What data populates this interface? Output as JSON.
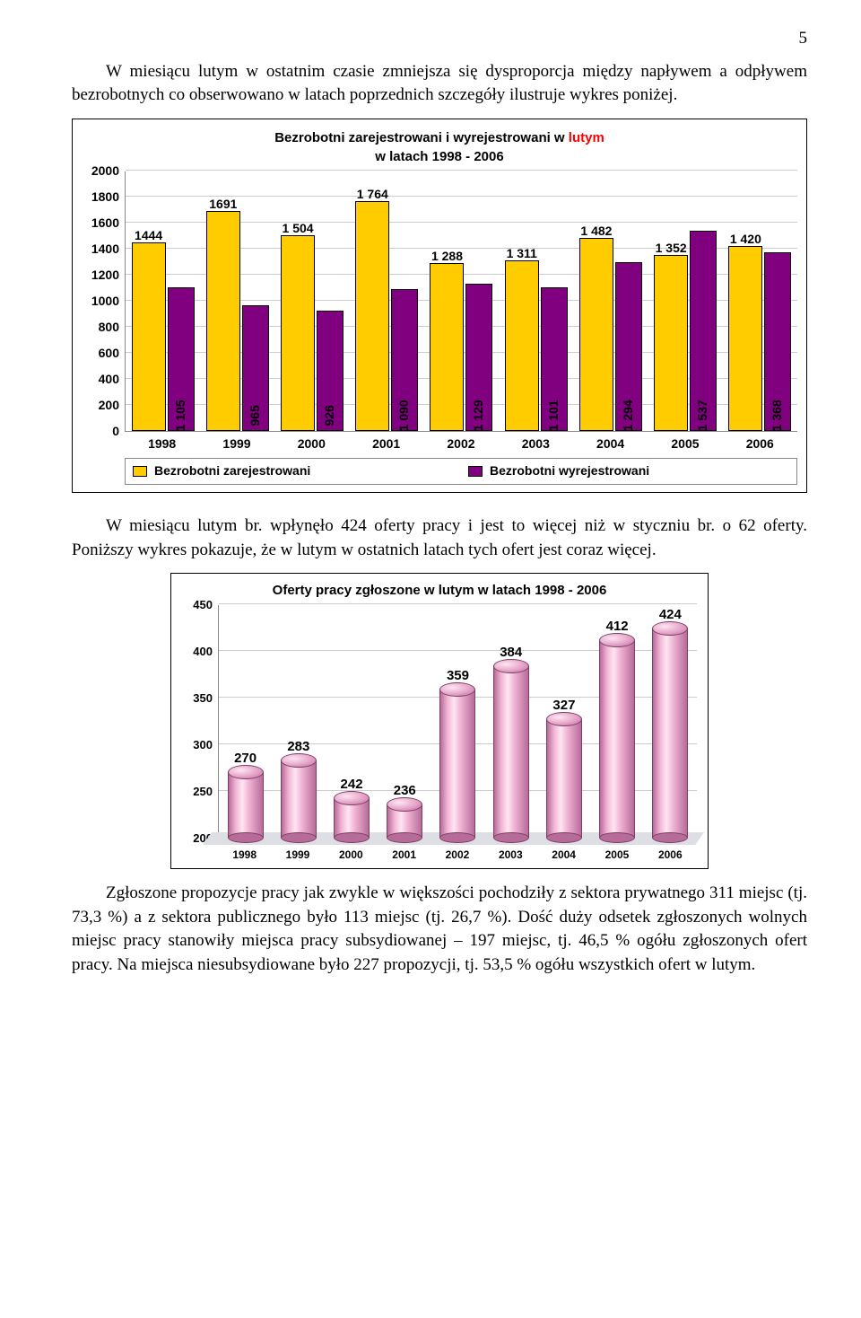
{
  "page_number": "5",
  "paragraph1": "W miesiącu lutym w ostatnim czasie zmniejsza się dysproporcja między napływem a odpływem bezrobotnych co obserwowano w latach poprzednich szczegóły ilustruje wykres poniżej.",
  "chart1": {
    "type": "grouped-bar",
    "title_prefix": "Bezrobotni zarejestrowani i wyrejestrowani w ",
    "title_highlight": "lutym",
    "title_suffix_line2": "w latach 1998 - 2006",
    "categories": [
      "1998",
      "1999",
      "2000",
      "2001",
      "2002",
      "2003",
      "2004",
      "2005",
      "2006"
    ],
    "series_reg_label": "Bezrobotni zarejestrowani",
    "series_wyr_label": "Bezrobotni wyrejestrowani",
    "reg_values": [
      1444,
      1691,
      1504,
      1764,
      1288,
      1311,
      1482,
      1352,
      1420
    ],
    "reg_labels": [
      "1444",
      "1691",
      "1 504",
      "1 764",
      "1 288",
      "1 311",
      "1 482",
      "1 352",
      "1 420"
    ],
    "wyr_values": [
      1105,
      965,
      926,
      1090,
      1129,
      1101,
      1294,
      1537,
      1368
    ],
    "wyr_labels": [
      "1 105",
      "965",
      "926",
      "1 090",
      "1 129",
      "1 101",
      "1 294",
      "1 537",
      "1 368"
    ],
    "ymin": 0,
    "ymax": 2000,
    "ystep": 200,
    "yticks": [
      "0",
      "200",
      "400",
      "600",
      "800",
      "1000",
      "1200",
      "1400",
      "1600",
      "1800",
      "2000"
    ],
    "color_reg": "#ffcc00",
    "color_wyr": "#800080",
    "grid_color": "#cccccc",
    "background": "#ffffff",
    "label_fontsize": 14
  },
  "paragraph2": "W miesiącu lutym br. wpłynęło 424 oferty pracy i jest to więcej niż w styczniu br. o 62 oferty. Poniższy wykres pokazuje, że w lutym w ostatnich latach tych ofert jest coraz więcej.",
  "chart2": {
    "type": "bar-cylinder",
    "title": "Oferty pracy zgłoszone w lutym w latach 1998 - 2006",
    "categories": [
      "1998",
      "1999",
      "2000",
      "2001",
      "2002",
      "2003",
      "2004",
      "2005",
      "2006"
    ],
    "values": [
      270,
      283,
      242,
      236,
      359,
      384,
      327,
      412,
      424
    ],
    "labels": [
      "270",
      "283",
      "242",
      "236",
      "359",
      "384",
      "327",
      "412",
      "424"
    ],
    "ymin": 200,
    "ymax": 450,
    "ystep": 50,
    "yticks": [
      "200",
      "250",
      "300",
      "350",
      "400",
      "450"
    ],
    "bar_color_light": "#f0b2d2",
    "bar_color_dark": "#b76b99",
    "grid_color": "#cccccc",
    "floor_color": "#dedfe4",
    "background": "#ffffff"
  },
  "paragraph3": "Zgłoszone propozycje pracy jak zwykle w większości pochodziły z sektora prywatnego 311 miejsc (tj. 73,3 %) a z sektora publicznego było 113 miejsc (tj. 26,7 %). Dość duży odsetek zgłoszonych wolnych miejsc pracy stanowiły miejsca pracy subsydiowanej – 197 miejsc, tj. 46,5 % ogółu zgłoszonych ofert pracy. Na miejsca niesubsydiowane było 227 propozycji, tj. 53,5 % ogółu wszystkich ofert w lutym."
}
